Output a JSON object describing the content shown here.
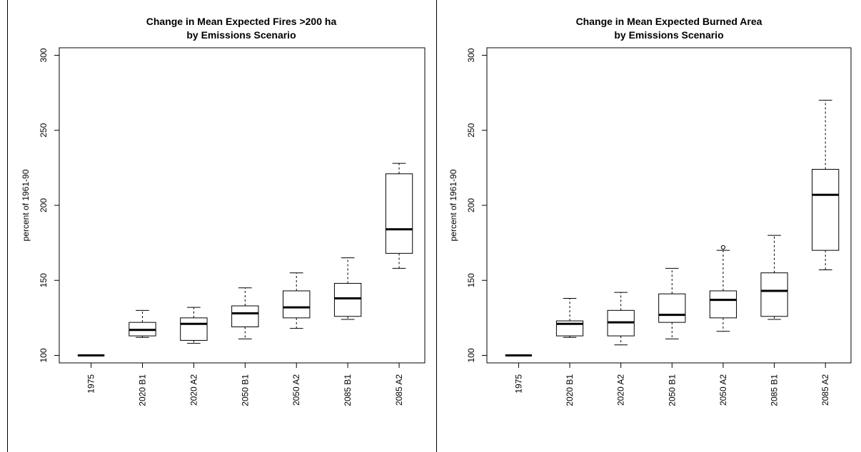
{
  "chart_data": [
    {
      "type": "box",
      "title": "Change in Mean Expected Fires >200 ha\nby Emissions Scenario",
      "ylabel": "percent of 1961-90",
      "ylim": [
        95,
        305
      ],
      "yticks": [
        100,
        150,
        200,
        250,
        300
      ],
      "categories": [
        "1975",
        "2020 B1",
        "2020 A2",
        "2050 B1",
        "2050 A2",
        "2085 B1",
        "2085 A2"
      ],
      "boxes": [
        {
          "min": 100,
          "q1": 100,
          "median": 100,
          "q3": 100,
          "max": 100,
          "outliers": []
        },
        {
          "min": 112,
          "q1": 113,
          "median": 117,
          "q3": 122,
          "max": 130,
          "outliers": []
        },
        {
          "min": 108,
          "q1": 110,
          "median": 121,
          "q3": 125,
          "max": 132,
          "outliers": []
        },
        {
          "min": 111,
          "q1": 119,
          "median": 128,
          "q3": 133,
          "max": 145,
          "outliers": []
        },
        {
          "min": 118,
          "q1": 125,
          "median": 132,
          "q3": 143,
          "max": 155,
          "outliers": []
        },
        {
          "min": 124,
          "q1": 126,
          "median": 138,
          "q3": 148,
          "max": 165,
          "outliers": []
        },
        {
          "min": 158,
          "q1": 168,
          "median": 184,
          "q3": 221,
          "max": 228,
          "outliers": []
        }
      ]
    },
    {
      "type": "box",
      "title": "Change in Mean Expected Burned Area\nby Emissions Scenario",
      "ylabel": "percent of 1961-90",
      "ylim": [
        95,
        305
      ],
      "yticks": [
        100,
        150,
        200,
        250,
        300
      ],
      "categories": [
        "1975",
        "2020 B1",
        "2020 A2",
        "2050 B1",
        "2050 A2",
        "2085 B1",
        "2085 A2"
      ],
      "boxes": [
        {
          "min": 100,
          "q1": 100,
          "median": 100,
          "q3": 100,
          "max": 100,
          "outliers": []
        },
        {
          "min": 112,
          "q1": 113,
          "median": 121,
          "q3": 123,
          "max": 138,
          "outliers": []
        },
        {
          "min": 107,
          "q1": 113,
          "median": 122,
          "q3": 130,
          "max": 142,
          "outliers": []
        },
        {
          "min": 111,
          "q1": 122,
          "median": 127,
          "q3": 141,
          "max": 158,
          "outliers": []
        },
        {
          "min": 116,
          "q1": 125,
          "median": 137,
          "q3": 143,
          "max": 170,
          "outliers": [
            172
          ]
        },
        {
          "min": 124,
          "q1": 126,
          "median": 143,
          "q3": 155,
          "max": 180,
          "outliers": []
        },
        {
          "min": 157,
          "q1": 170,
          "median": 207,
          "q3": 224,
          "max": 270,
          "outliers": []
        }
      ]
    }
  ]
}
